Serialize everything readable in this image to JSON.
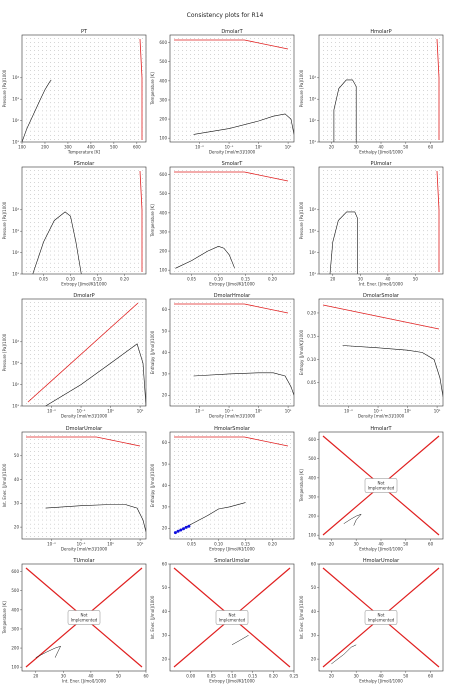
{
  "figure": {
    "suptitle": "Consistency plots for R14"
  },
  "colors": {
    "boundary": "#e02020",
    "dots": "#333333",
    "curve": "#111111",
    "highlight": "#1010e0"
  },
  "chart_data": [
    {
      "id": "PT",
      "title": "PT",
      "type": "scatter",
      "xlabel": "Temperature [K]",
      "ylabel": "Pressure [Pa]/1000",
      "xlim": [
        100,
        640
      ],
      "ylim_log": [
        1,
        6
      ],
      "xlog": false,
      "ylog": true,
      "xticks": [
        100,
        200,
        300,
        400,
        500,
        600
      ],
      "xticklabels": [
        "100",
        "200",
        "300",
        "400",
        "500",
        "600"
      ],
      "yticks": [
        1,
        2,
        3,
        4
      ],
      "yticklabels": [
        "10¹",
        "10²",
        "10³",
        "10⁴"
      ],
      "sat_curve": [
        [
          100,
          1
        ],
        [
          120,
          1.6
        ],
        [
          150,
          2.3
        ],
        [
          180,
          3.0
        ],
        [
          200,
          3.45
        ],
        [
          220,
          3.8
        ],
        [
          227,
          3.9
        ]
      ],
      "red_edge": "right"
    },
    {
      "id": "DmolarT",
      "title": "DmolarT",
      "type": "scatter",
      "xlabel": "Density [mol/m3]/1000",
      "ylabel": "Temperature [K]",
      "xlim_log": [
        -3,
        1.2
      ],
      "ylim": [
        80,
        640
      ],
      "xlog": true,
      "ylog": false,
      "xticks": [
        -2,
        -1,
        0,
        1
      ],
      "xticklabels": [
        "10⁻²",
        "10⁻¹",
        "10⁰",
        "10¹"
      ],
      "yticks": [
        100,
        200,
        300,
        400,
        500,
        600
      ],
      "yticklabels": [
        "100",
        "200",
        "300",
        "400",
        "500",
        "600"
      ],
      "sat_curve": [
        [
          -2.2,
          120
        ],
        [
          -1,
          150
        ],
        [
          0,
          190
        ],
        [
          0.5,
          215
        ],
        [
          0.9,
          227
        ],
        [
          1.1,
          200
        ],
        [
          1.2,
          120
        ]
      ],
      "red_edge": "top"
    },
    {
      "id": "HmolarP",
      "title": "HmolarP",
      "type": "scatter",
      "xlabel": "Enthalpy [J/mol]/1000",
      "ylabel": "Pressure [Pa]/1000",
      "xlim": [
        15,
        65
      ],
      "ylim_log": [
        1,
        6
      ],
      "xlog": false,
      "ylog": true,
      "xticks": [
        20,
        30,
        40,
        50,
        60
      ],
      "xticklabels": [
        "20",
        "30",
        "40",
        "50",
        "60"
      ],
      "yticks": [
        1,
        2,
        3,
        4
      ],
      "yticklabels": [
        "10¹",
        "10²",
        "10³",
        "10⁴"
      ],
      "sat_curve": [
        [
          21,
          1
        ],
        [
          21,
          2.5
        ],
        [
          23,
          3.5
        ],
        [
          26,
          3.9
        ],
        [
          28.5,
          3.9
        ],
        [
          30,
          3.6
        ],
        [
          30,
          1
        ]
      ],
      "red_edge": "right"
    },
    {
      "id": "PSmolar",
      "title": "PSmolar",
      "type": "scatter",
      "xlabel": "Entropy [J/mol/K]/1000",
      "ylabel": "Pressure [Pa]/1000",
      "xlim": [
        0.01,
        0.24
      ],
      "ylim_log": [
        1,
        6
      ],
      "xlog": false,
      "ylog": true,
      "xticks": [
        0.05,
        0.1,
        0.15,
        0.2
      ],
      "xticklabels": [
        "0.05",
        "0.10",
        "0.15",
        "0.20"
      ],
      "yticks": [
        1,
        2,
        3,
        4
      ],
      "yticklabels": [
        "10¹",
        "10²",
        "10³",
        "10⁴"
      ],
      "sat_curve": [
        [
          0.03,
          1
        ],
        [
          0.05,
          2.5
        ],
        [
          0.07,
          3.5
        ],
        [
          0.09,
          3.9
        ],
        [
          0.1,
          3.7
        ],
        [
          0.11,
          2.5
        ],
        [
          0.12,
          1
        ]
      ],
      "red_edge": "right"
    },
    {
      "id": "SmolarT",
      "title": "SmolarT",
      "type": "scatter",
      "xlabel": "Entropy [J/mol/K]/1000",
      "ylabel": "Temperature [K]",
      "xlim": [
        0.01,
        0.24
      ],
      "ylim": [
        80,
        640
      ],
      "xlog": false,
      "ylog": false,
      "xticks": [
        0.05,
        0.1,
        0.15,
        0.2
      ],
      "xticklabels": [
        "0.05",
        "0.10",
        "0.15",
        "0.20"
      ],
      "yticks": [
        100,
        200,
        300,
        400,
        500,
        600
      ],
      "yticklabels": [
        "100",
        "200",
        "300",
        "400",
        "500",
        "600"
      ],
      "sat_curve": [
        [
          0.02,
          110
        ],
        [
          0.05,
          150
        ],
        [
          0.08,
          200
        ],
        [
          0.1,
          225
        ],
        [
          0.11,
          215
        ],
        [
          0.12,
          180
        ],
        [
          0.13,
          110
        ]
      ],
      "red_edge": "top"
    },
    {
      "id": "PUmolar",
      "title": "PUmolar",
      "type": "scatter",
      "xlabel": "Int. Ener. [J/mol]/1000",
      "ylabel": "Pressure [Pa]/1000",
      "xlim": [
        15,
        60
      ],
      "ylim_log": [
        1,
        6
      ],
      "xlog": false,
      "ylog": true,
      "xticks": [
        20,
        30,
        40,
        50
      ],
      "xticklabels": [
        "20",
        "30",
        "40",
        "50"
      ],
      "yticks": [
        1,
        2,
        3,
        4
      ],
      "yticklabels": [
        "10¹",
        "10²",
        "10³",
        "10⁴"
      ],
      "sat_curve": [
        [
          19,
          1
        ],
        [
          20,
          2.5
        ],
        [
          22,
          3.5
        ],
        [
          25,
          3.9
        ],
        [
          28,
          3.9
        ],
        [
          29,
          3.6
        ],
        [
          29,
          1
        ]
      ],
      "red_edge": "right"
    },
    {
      "id": "DmolarP",
      "title": "DmolarP",
      "type": "scatter",
      "xlabel": "Density [mol/m3]/1000",
      "ylabel": "Pressure [Pa]/1000",
      "xlim_log": [
        -3,
        1.2
      ],
      "ylim_log": [
        1,
        6
      ],
      "xlog": true,
      "ylog": true,
      "xticks": [
        -2,
        -1,
        0,
        1
      ],
      "xticklabels": [
        "10⁻²",
        "10⁻¹",
        "10⁰",
        "10¹"
      ],
      "yticks": [
        1,
        2,
        3,
        4
      ],
      "yticklabels": [
        "10¹",
        "10²",
        "10³",
        "10⁴"
      ],
      "sat_curve": [
        [
          -2.2,
          1
        ],
        [
          -1,
          2
        ],
        [
          0,
          3
        ],
        [
          0.5,
          3.5
        ],
        [
          0.9,
          3.9
        ],
        [
          1.1,
          3
        ],
        [
          1.2,
          1
        ]
      ],
      "red_edge": "diagonal"
    },
    {
      "id": "DmolarHmolar",
      "title": "DmolarHmolar",
      "type": "scatter",
      "xlabel": "Density [mol/m3]/1000",
      "ylabel": "Enthalpy [J/mol]/1000",
      "xlim_log": [
        -3,
        1.2
      ],
      "ylim": [
        15,
        65
      ],
      "xlog": true,
      "ylog": false,
      "xticks": [
        -2,
        -1,
        0,
        1
      ],
      "xticklabels": [
        "10⁻²",
        "10⁻¹",
        "10⁰",
        "10¹"
      ],
      "yticks": [
        20,
        30,
        40,
        50,
        60
      ],
      "yticklabels": [
        "20",
        "30",
        "40",
        "50",
        "60"
      ],
      "sat_curve": [
        [
          -2.2,
          29
        ],
        [
          -1,
          30
        ],
        [
          0,
          30.5
        ],
        [
          0.5,
          30.5
        ],
        [
          0.9,
          29
        ],
        [
          1.1,
          24
        ],
        [
          1.2,
          20
        ]
      ],
      "red_edge": "top"
    },
    {
      "id": "DmolarSmolar",
      "title": "DmolarSmolar",
      "type": "scatter",
      "xlabel": "Density [mol/m3]/1000",
      "ylabel": "Entropy [J/mol/K]/1000",
      "xlim_log": [
        -3,
        1.2
      ],
      "ylim": [
        0.0,
        0.23
      ],
      "xlog": true,
      "ylog": false,
      "xticks": [
        -2,
        -1,
        0,
        1
      ],
      "xticklabels": [
        "10⁻²",
        "10⁻¹",
        "10⁰",
        "10¹"
      ],
      "yticks": [
        0.05,
        0.1,
        0.15,
        0.2
      ],
      "yticklabels": [
        "0.05",
        "0.10",
        "0.15",
        "0.20"
      ],
      "sat_curve": [
        [
          -2.2,
          0.13
        ],
        [
          -1,
          0.125
        ],
        [
          0,
          0.12
        ],
        [
          0.5,
          0.115
        ],
        [
          0.9,
          0.1
        ],
        [
          1.1,
          0.06
        ],
        [
          1.2,
          0.02
        ]
      ],
      "red_edge": "top-diagonal"
    },
    {
      "id": "DmolarUmolar",
      "title": "DmolarUmolar",
      "type": "scatter",
      "xlabel": "Density [mol/m3]/1000",
      "ylabel": "Int. Ener. [J/mol]/1000",
      "xlim_log": [
        -3,
        1.2
      ],
      "ylim": [
        15,
        60
      ],
      "xlog": true,
      "ylog": false,
      "xticks": [
        -2,
        -1,
        0,
        1
      ],
      "xticklabels": [
        "10⁻²",
        "10⁻¹",
        "10⁰",
        "10¹"
      ],
      "yticks": [
        20,
        30,
        40,
        50
      ],
      "yticklabels": [
        "20",
        "30",
        "40",
        "50"
      ],
      "sat_curve": [
        [
          -2.2,
          28
        ],
        [
          -1,
          29
        ],
        [
          0,
          29.5
        ],
        [
          0.5,
          29.5
        ],
        [
          0.9,
          28
        ],
        [
          1.1,
          23
        ],
        [
          1.2,
          18
        ]
      ],
      "red_edge": "top"
    },
    {
      "id": "HmolarSmolar",
      "title": "HmolarSmolar",
      "type": "scatter",
      "xlabel": "Entropy [J/mol/K]/1000",
      "ylabel": "Enthalpy [J/mol]/1000",
      "xlim": [
        0.01,
        0.24
      ],
      "ylim": [
        15,
        65
      ],
      "xlog": false,
      "ylog": false,
      "xticks": [
        0.05,
        0.1,
        0.15,
        0.2
      ],
      "xticklabels": [
        "0.05",
        "0.10",
        "0.15",
        "0.20"
      ],
      "yticks": [
        20,
        30,
        40,
        50,
        60
      ],
      "yticklabels": [
        "20",
        "30",
        "40",
        "50",
        "60"
      ],
      "sat_curve": [
        [
          0.02,
          18
        ],
        [
          0.05,
          22
        ],
        [
          0.08,
          26
        ],
        [
          0.1,
          29
        ],
        [
          0.12,
          30
        ],
        [
          0.15,
          32
        ]
      ],
      "highlight_points": [
        [
          0.02,
          18
        ],
        [
          0.025,
          18.6
        ],
        [
          0.03,
          19.2
        ],
        [
          0.035,
          19.8
        ],
        [
          0.04,
          20.4
        ],
        [
          0.045,
          21
        ]
      ],
      "red_edge": "top"
    },
    {
      "id": "HmolarT",
      "title": "HmolarT",
      "type": "not_implemented",
      "xlabel": "Enthalpy [J/mol]/1000",
      "ylabel": "Temperature [K]",
      "xlim": [
        15,
        65
      ],
      "ylim": [
        80,
        640
      ],
      "xticks": [
        20,
        30,
        40,
        50,
        60
      ],
      "xticklabels": [
        "20",
        "30",
        "40",
        "50",
        "60"
      ],
      "yticks": [
        100,
        200,
        300,
        400,
        500,
        600
      ],
      "yticklabels": [
        "100",
        "200",
        "300",
        "400",
        "500",
        "600"
      ],
      "sat_curve": [
        [
          25,
          160
        ],
        [
          28,
          185
        ],
        [
          30,
          200
        ],
        [
          32,
          210
        ],
        [
          30,
          180
        ],
        [
          29,
          150
        ]
      ],
      "note": "Not\nImplemented"
    },
    {
      "id": "TUmolar",
      "title": "TUmolar",
      "type": "not_implemented",
      "xlabel": "Int. Ener. [J/mol]/1000",
      "ylabel": "Temperature [K]",
      "xlim": [
        15,
        60
      ],
      "ylim": [
        80,
        640
      ],
      "xticks": [
        20,
        30,
        40,
        50,
        60
      ],
      "xticklabels": [
        "20",
        "30",
        "40",
        "50",
        "60"
      ],
      "yticks": [
        100,
        200,
        300,
        400,
        500,
        600
      ],
      "yticklabels": [
        "100",
        "200",
        "300",
        "400",
        "500",
        "600"
      ],
      "sat_curve": [
        [
          20,
          150
        ],
        [
          24,
          180
        ],
        [
          27,
          200
        ],
        [
          29,
          210
        ],
        [
          28,
          180
        ],
        [
          27,
          150
        ]
      ],
      "note": "Not\nImplemented"
    },
    {
      "id": "SmolarUmolar",
      "title": "SmolarUmolar",
      "type": "not_implemented",
      "xlabel": "Entropy [J/mol/K]/1000",
      "ylabel": "Int. Ener. [J/mol]/1000",
      "xlim": [
        -0.05,
        0.25
      ],
      "ylim": [
        15,
        60
      ],
      "xticks": [
        0.0,
        0.05,
        0.1,
        0.15,
        0.2,
        0.25
      ],
      "xticklabels": [
        "0.00",
        "0.05",
        "0.10",
        "0.15",
        "0.20",
        "0.25"
      ],
      "yticks": [
        20,
        30,
        40,
        50,
        60
      ],
      "yticklabels": [
        "20",
        "30",
        "40",
        "50",
        "60"
      ],
      "sat_curve": [
        [
          0.1,
          26
        ],
        [
          0.12,
          28
        ],
        [
          0.14,
          30
        ]
      ],
      "note": "Not\nImplemented"
    },
    {
      "id": "HmolarUmolar",
      "title": "HmolarUmolar",
      "type": "not_implemented",
      "xlabel": "Enthalpy [J/mol]/1000",
      "ylabel": "Int. Ener. [J/mol]/1000",
      "xlim": [
        15,
        65
      ],
      "ylim": [
        15,
        60
      ],
      "xticks": [
        20,
        30,
        40,
        50,
        60
      ],
      "xticklabels": [
        "20",
        "30",
        "40",
        "50",
        "60"
      ],
      "yticks": [
        20,
        30,
        40,
        50,
        60
      ],
      "yticklabels": [
        "20",
        "30",
        "40",
        "50",
        "60"
      ],
      "sat_curve": [
        [
          20,
          18
        ],
        [
          25,
          22
        ],
        [
          28,
          25
        ],
        [
          30,
          26
        ]
      ],
      "note": "Not\nImplemented"
    }
  ]
}
